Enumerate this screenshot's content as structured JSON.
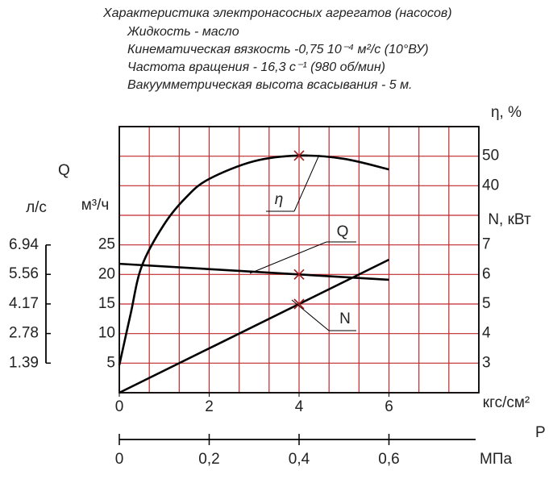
{
  "chart_data": {
    "type": "line",
    "title": "Характеристика электронасосных агрегатов (насосов)",
    "subtitle": [
      "Жидкость - масло",
      "Кинематическая вязкость -0,75 10⁻⁴ м²/с (10°ВУ)",
      "Частота вращения - 16,3 с⁻¹ (980 об/мин)",
      "Вакуумметрическая высота всасывания  - 5 м."
    ],
    "q_label": "Q",
    "x_label": "кгс/см²",
    "x2_label": "МПа",
    "p_label": "P",
    "xlim": [
      0,
      8
    ],
    "xticks": [
      0,
      2,
      4,
      6
    ],
    "x2lim": [
      0,
      0.8
    ],
    "x2ticks": [
      0,
      {
        "value": 0.2,
        "label": "0,2"
      },
      {
        "value": 0.4,
        "label": "0,4"
      },
      {
        "value": 0.6,
        "label": "0,6"
      }
    ],
    "xgrid": [
      0,
      0.667,
      1.333,
      2,
      2.667,
      3.333,
      4,
      4.667,
      5.333,
      6,
      6.667,
      7.333,
      8
    ],
    "ygrid": [
      0,
      5,
      10,
      15,
      20,
      25,
      30,
      35,
      40,
      45
    ],
    "grid_color": "#c0282d",
    "highlight_x": 4,
    "marker_color": "#a01818",
    "y_axes": [
      {
        "label": "л/с",
        "ylim": [
          0,
          12.5
        ],
        "yticks": [
          1.39,
          2.78,
          4.17,
          5.56,
          6.94
        ]
      },
      {
        "label": "м³/ч",
        "ylim": [
          0,
          45
        ],
        "yticks": [
          5,
          10,
          15,
          20,
          25
        ]
      },
      {
        "label": "η, %",
        "ylim": [
          -30,
          60
        ],
        "yticks": [
          40,
          50
        ]
      },
      {
        "label": "N, кВт",
        "ylim": [
          2,
          11
        ],
        "yticks": [
          3,
          4,
          5,
          6,
          7
        ]
      }
    ],
    "series": [
      {
        "name": "η",
        "axis": 2,
        "color": "#000000",
        "x": [
          0,
          0.25,
          0.5,
          1,
          1.5,
          2,
          3,
          4,
          5,
          6
        ],
        "values": [
          -20.7,
          -3.5,
          12.8,
          27,
          36.3,
          42.3,
          48.3,
          50.2,
          49.1,
          45.5
        ]
      },
      {
        "name": "Q",
        "axis": 1,
        "color": "#000000",
        "x": [
          0,
          4,
          6
        ],
        "values": [
          21.8,
          20,
          19.1
        ]
      },
      {
        "name": "N",
        "axis": 3,
        "color": "#000000",
        "x": [
          0,
          4,
          6
        ],
        "values": [
          2,
          5,
          6.5
        ]
      }
    ]
  }
}
